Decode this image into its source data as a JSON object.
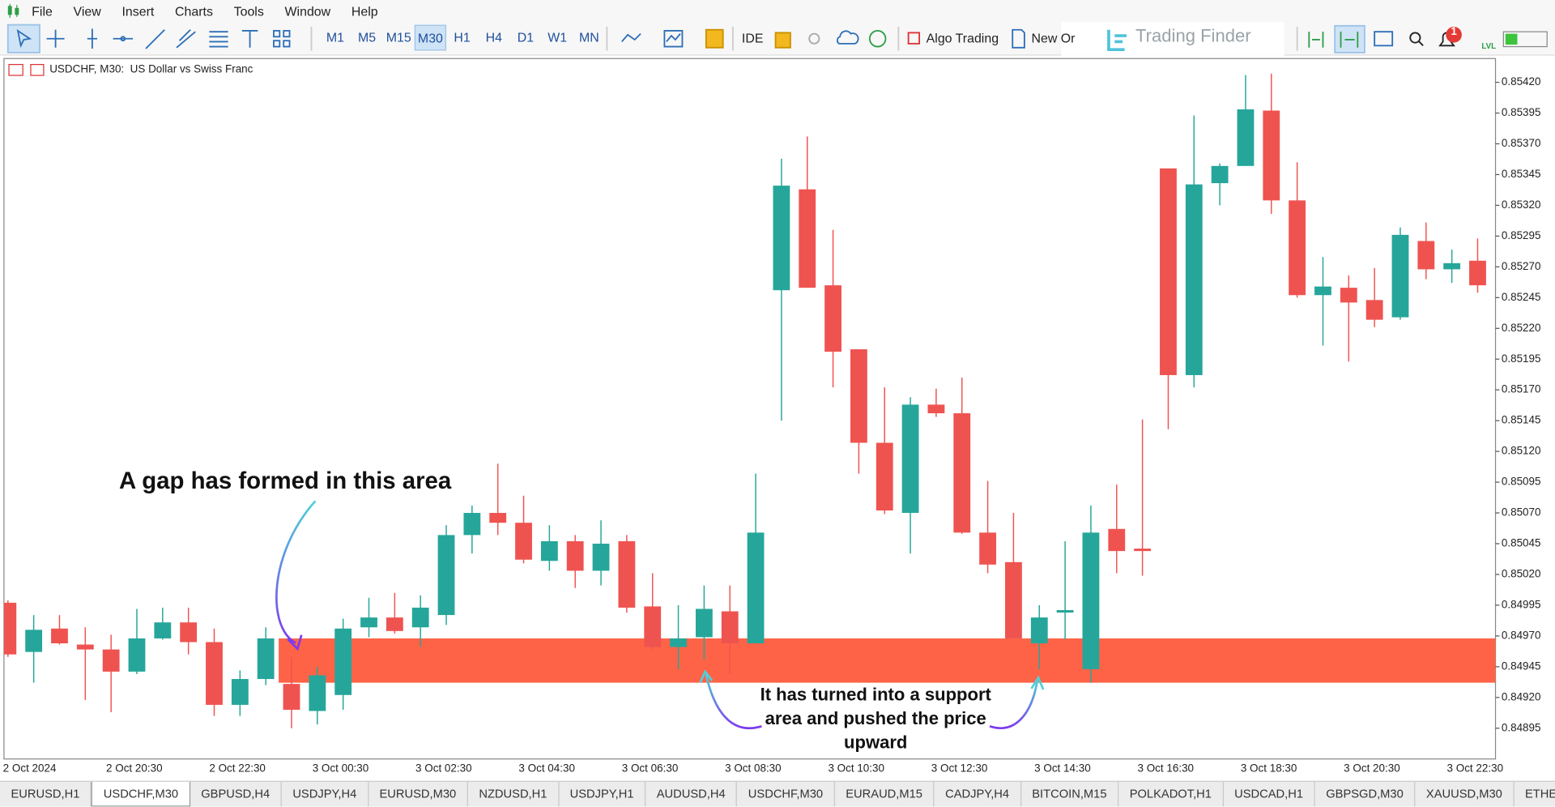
{
  "menu": [
    "File",
    "View",
    "Insert",
    "Charts",
    "Tools",
    "Window",
    "Help"
  ],
  "toolbar": {
    "timeframes": [
      "M1",
      "M5",
      "M15",
      "M30",
      "H1",
      "H4",
      "D1",
      "W1",
      "MN"
    ],
    "active_timeframe": "M30",
    "ide": "IDE",
    "algo_trading": "Algo Trading",
    "new_order": "New Or",
    "logo": "Trading Finder",
    "notification_count": 1,
    "lvl": "LVL"
  },
  "chart_data": {
    "type": "candlestick",
    "title": "USDCHF, M30:  US Dollar vs Swiss Franc",
    "categories": [
      "2 Oct 2024",
      null,
      null,
      null,
      "2 Oct 20:30",
      null,
      null,
      null,
      "2 Oct 22:30",
      null,
      null,
      null,
      "3 Oct 00:30",
      null,
      null,
      null,
      "3 Oct 02:30",
      null,
      null,
      null,
      "3 Oct 04:30",
      null,
      null,
      null,
      "3 Oct 06:30",
      null,
      null,
      null,
      "3 Oct 08:30",
      null,
      null,
      null,
      "3 Oct 10:30",
      null,
      null,
      null,
      "3 Oct 12:30",
      null,
      null,
      null,
      "3 Oct 14:30",
      null,
      null,
      null,
      "3 Oct 16:30",
      null,
      null,
      null,
      "3 Oct 18:30",
      null,
      null,
      null,
      "3 Oct 20:30",
      null,
      null,
      null,
      "3 Oct 22:30",
      null
    ],
    "open": [
      0.84997,
      0.84957,
      0.84976,
      0.84963,
      0.84959,
      0.84941,
      0.84968,
      0.84981,
      0.84965,
      0.84914,
      0.84935,
      0.84931,
      0.84909,
      0.84922,
      0.84977,
      0.84985,
      0.84977,
      0.84987,
      0.85052,
      0.8507,
      0.85062,
      0.85031,
      0.85047,
      0.85023,
      0.85047,
      0.84994,
      0.84961,
      0.84969,
      0.8499,
      0.84964,
      0.85251,
      0.85333,
      0.85255,
      0.85203,
      0.85127,
      0.8507,
      0.85158,
      0.85151,
      0.85054,
      0.8503,
      0.84964,
      0.84989,
      0.84943,
      0.85057,
      0.85041,
      0.8535,
      0.85182,
      0.85338,
      0.85352,
      0.85397,
      0.85324,
      0.85247,
      0.85253,
      0.85243,
      0.85229,
      0.85291,
      0.85268,
      0.85275
    ],
    "high": [
      0.84999,
      0.84987,
      0.84987,
      0.84977,
      0.84971,
      0.84992,
      0.84993,
      0.84993,
      0.84976,
      0.84942,
      0.84977,
      0.84953,
      0.84945,
      0.84984,
      0.85001,
      0.85005,
      0.85003,
      0.8506,
      0.85076,
      0.8511,
      0.85084,
      0.8506,
      0.85052,
      0.85064,
      0.85052,
      0.85021,
      0.84995,
      0.85011,
      0.85011,
      0.85102,
      0.85358,
      0.85376,
      0.853,
      0.85203,
      0.85172,
      0.85164,
      0.85171,
      0.8518,
      0.85096,
      0.8507,
      0.84995,
      0.85047,
      0.85076,
      0.85093,
      0.85146,
      0.8535,
      0.85393,
      0.85354,
      0.85426,
      0.85427,
      0.85355,
      0.85278,
      0.85263,
      0.85269,
      0.85302,
      0.85306,
      0.85284,
      0.85293
    ],
    "low": [
      0.84953,
      0.84932,
      0.84963,
      0.84918,
      0.84908,
      0.84939,
      0.84967,
      0.84955,
      0.84905,
      0.84905,
      0.8493,
      0.84895,
      0.84898,
      0.8491,
      0.84969,
      0.84972,
      0.84961,
      0.84979,
      0.85037,
      0.85052,
      0.85029,
      0.85023,
      0.85009,
      0.85011,
      0.84989,
      0.84959,
      0.84943,
      0.84951,
      0.84939,
      0.84964,
      0.85145,
      0.85253,
      0.85172,
      0.85102,
      0.85069,
      0.85037,
      0.85148,
      0.85053,
      0.85021,
      0.84968,
      0.84943,
      0.84967,
      0.84932,
      0.85021,
      0.85019,
      0.85138,
      0.85172,
      0.8532,
      0.85352,
      0.85313,
      0.85245,
      0.85206,
      0.85193,
      0.85221,
      0.85227,
      0.8526,
      0.85257,
      0.85249
    ],
    "close": [
      0.84955,
      0.84975,
      0.84964,
      0.84959,
      0.84941,
      0.84968,
      0.84981,
      0.84965,
      0.84914,
      0.84935,
      0.84968,
      0.8491,
      0.84938,
      0.84976,
      0.84985,
      0.84974,
      0.84993,
      0.85052,
      0.8507,
      0.85062,
      0.85032,
      0.85047,
      0.85023,
      0.85045,
      0.84993,
      0.84961,
      0.84968,
      0.84992,
      0.84964,
      0.85054,
      0.85336,
      0.85253,
      0.85201,
      0.85127,
      0.85072,
      0.85158,
      0.85151,
      0.85054,
      0.85028,
      0.84968,
      0.84985,
      0.84991,
      0.85054,
      0.85039,
      0.85039,
      0.85182,
      0.85337,
      0.85352,
      0.85398,
      0.85324,
      0.85247,
      0.85254,
      0.85241,
      0.85227,
      0.85296,
      0.85268,
      0.85273,
      0.85255
    ],
    "up_color": "#26a69a",
    "down_color": "#ef5350",
    "ylim": [
      0.8487,
      0.854385
    ],
    "yticks": [
      {
        "value": 0.8542,
        "label": "0.85420"
      },
      {
        "value": 0.85395,
        "label": "0.85395"
      },
      {
        "value": 0.8537,
        "label": "0.85370"
      },
      {
        "value": 0.85345,
        "label": "0.85345"
      },
      {
        "value": 0.8532,
        "label": "0.85320"
      },
      {
        "value": 0.85295,
        "label": "0.85295"
      },
      {
        "value": 0.8527,
        "label": "0.85270"
      },
      {
        "value": 0.85245,
        "label": "0.85245"
      },
      {
        "value": 0.8522,
        "label": "0.85220"
      },
      {
        "value": 0.85195,
        "label": "0.85195"
      },
      {
        "value": 0.8517,
        "label": "0.85170"
      },
      {
        "value": 0.85145,
        "label": "0.85145"
      },
      {
        "value": 0.8512,
        "label": "0.85120"
      },
      {
        "value": 0.85095,
        "label": "0.85095"
      },
      {
        "value": 0.8507,
        "label": "0.85070"
      },
      {
        "value": 0.85045,
        "label": "0.85045"
      },
      {
        "value": 0.8502,
        "label": "0.85020"
      },
      {
        "value": 0.84995,
        "label": "0.84995"
      },
      {
        "value": 0.8497,
        "label": "0.84970"
      },
      {
        "value": 0.84945,
        "label": "0.84945"
      },
      {
        "value": 0.8492,
        "label": "0.84920"
      },
      {
        "value": 0.84895,
        "label": "0.84895"
      }
    ],
    "zone": {
      "from": 0.84932,
      "to": 0.84968,
      "start_index": 11,
      "color": "#ff6347"
    },
    "annotations": [
      "A gap has formed in this area",
      "It has turned into a support area and pushed the price upward"
    ]
  },
  "tabs": [
    "EURUSD,H1",
    "USDCHF,M30",
    "GBPUSD,H4",
    "USDJPY,H4",
    "EURUSD,M30",
    "NZDUSD,H1",
    "USDJPY,H1",
    "AUDUSD,H4",
    "USDCHF,M30",
    "EURAUD,M15",
    "CADJPY,H4",
    "BITCOIN,M15",
    "POLKADOT,H1",
    "USDCAD,H1",
    "GBPSGD,M30",
    "XAUUSD,M30",
    "ETHE"
  ],
  "active_tab": 1
}
